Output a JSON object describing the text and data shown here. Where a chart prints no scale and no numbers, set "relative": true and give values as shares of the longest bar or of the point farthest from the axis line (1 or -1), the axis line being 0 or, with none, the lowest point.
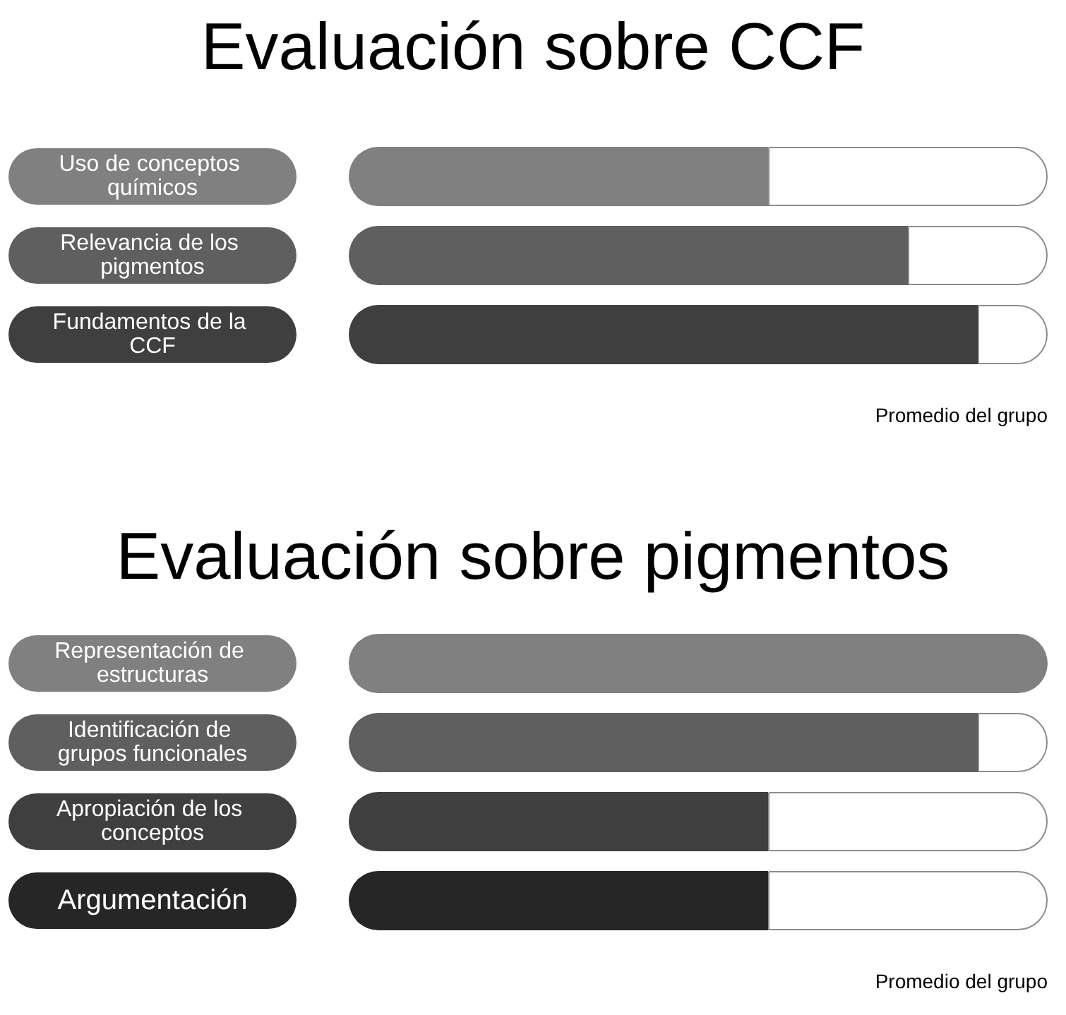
{
  "chart_data": [
    {
      "type": "bar",
      "orientation": "horizontal",
      "stacked": true,
      "relative": true,
      "title": "Evaluación sobre CCF",
      "categories": [
        "Uso de conceptos químicos",
        "Relevancia de los pigmentos",
        "Fundamentos de la CCF"
      ],
      "series": [
        {
          "values": [
            0.6,
            0.8,
            0.9
          ],
          "colors": [
            "#808080",
            "#5f5f5f",
            "#3f3f3f"
          ]
        },
        {
          "values": [
            0.4,
            0.2,
            0.1
          ],
          "color": "#ffffff"
        }
      ],
      "tick_labels": "y",
      "annotations": [
        "Promedio del grupo"
      ]
    },
    {
      "type": "bar",
      "orientation": "horizontal",
      "stacked": true,
      "relative": true,
      "title": "Evaluación sobre pigmentos",
      "categories": [
        "Representación de estructuras",
        "Identificación de grupos funcionales",
        "Apropiación de los conceptos",
        "Argumentación"
      ],
      "series": [
        {
          "values": [
            1,
            0.9,
            0.6,
            0.6
          ],
          "colors": [
            "#808080",
            "#5f5f5f",
            "#3f3f3f",
            "#262626"
          ]
        },
        {
          "values": [
            null,
            0.1,
            0.4,
            0.4
          ],
          "color": "#ffffff"
        }
      ],
      "tick_labels": "y",
      "annotations": [
        "Promedio del grupo"
      ]
    }
  ]
}
